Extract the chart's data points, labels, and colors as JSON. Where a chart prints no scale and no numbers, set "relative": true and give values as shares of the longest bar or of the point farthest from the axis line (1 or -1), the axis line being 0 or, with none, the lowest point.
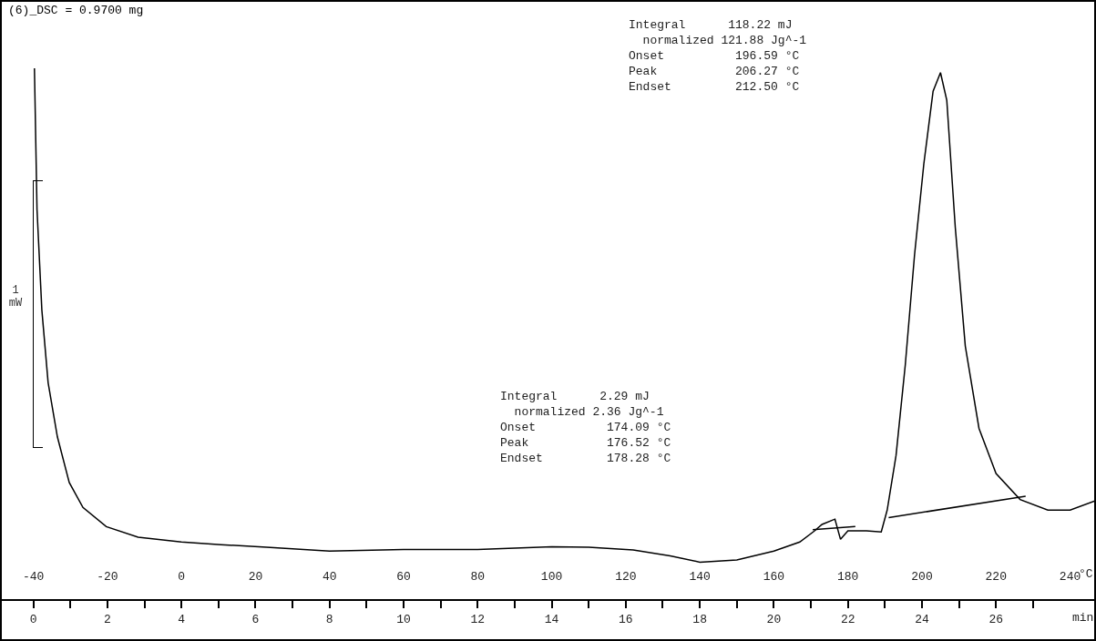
{
  "chart_data": {
    "type": "line",
    "title": "(6)_DSC = 0.9700 mg",
    "xlabel": "°C",
    "x2label": "min",
    "ylabel": "1 mW",
    "relative": true,
    "grid": false,
    "marker": "none",
    "line_style": "solid",
    "xlim": [
      -49,
      247
    ],
    "xticks": [
      -40,
      -20,
      0,
      20,
      40,
      60,
      80,
      100,
      120,
      140,
      160,
      180,
      200,
      220,
      240
    ],
    "x2lim": [
      -0.9,
      28.7
    ],
    "x2ticks": [
      0,
      {
        "value": 1,
        "label": null
      },
      2,
      {
        "value": 3,
        "label": null
      },
      4,
      {
        "value": 5,
        "label": null
      },
      6,
      {
        "value": 7,
        "label": null
      },
      8,
      {
        "value": 9,
        "label": null
      },
      10,
      {
        "value": 11,
        "label": null
      },
      12,
      {
        "value": 13,
        "label": null
      },
      14,
      {
        "value": 15,
        "label": null
      },
      16,
      {
        "value": 17,
        "label": null
      },
      18,
      {
        "value": 19,
        "label": null
      },
      20,
      {
        "value": 21,
        "label": null
      },
      22,
      {
        "value": 23,
        "label": null
      },
      24,
      {
        "value": 25,
        "label": null
      },
      26,
      {
        "value": 27,
        "label": null
      }
    ],
    "annotations": [
      "Integral      118.22 mJ\n  normalized 121.88 Jg^-1\nOnset          196.59 °C\nPeak           206.27 °C\nEndset         212.50 °C",
      "Integral      2.29 mJ\n  normalized 2.36 Jg^-1\nOnset          174.09 °C\nPeak           176.52 °C\nEndset         178.28 °C"
    ],
    "series": [
      {
        "color": "#000000",
        "x": [
          -39.7,
          -39,
          -37.7,
          -36,
          -33.5,
          -30.3,
          -26.6,
          -20.3,
          -11.7,
          0,
          10.7,
          23,
          40,
          60,
          80,
          100,
          110,
          122,
          132,
          140,
          150,
          160,
          167,
          171,
          173,
          176.5,
          178,
          180,
          185,
          189,
          190.6,
          193,
          195.5,
          198,
          200.5,
          203,
          205,
          206.7,
          209,
          211.7,
          215.4,
          220,
          226.5,
          234,
          240,
          247
        ],
        "values": [
          1.0,
          0.734,
          0.545,
          0.408,
          0.306,
          0.22,
          0.173,
          0.137,
          0.117,
          0.108,
          0.103,
          0.098,
          0.091,
          0.094,
          0.094,
          0.099,
          0.098,
          0.093,
          0.082,
          0.07,
          0.074,
          0.091,
          0.108,
          0.129,
          0.141,
          0.151,
          0.113,
          0.129,
          0.129,
          0.127,
          0.168,
          0.271,
          0.442,
          0.649,
          0.82,
          0.957,
          0.992,
          0.94,
          0.7,
          0.477,
          0.322,
          0.237,
          0.188,
          0.168,
          0.168,
          0.186
        ]
      },
      {
        "color": "#000000",
        "x": [
          170.5,
          182
        ],
        "values": [
          0.131,
          0.137
        ]
      },
      {
        "color": "#000000",
        "x": [
          191,
          228
        ],
        "values": [
          0.154,
          0.194
        ]
      }
    ]
  }
}
